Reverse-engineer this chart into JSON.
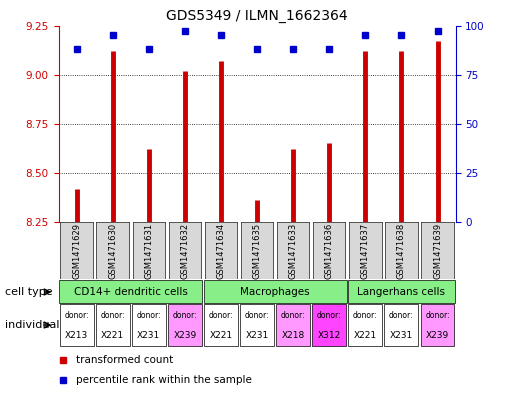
{
  "title": "GDS5349 / ILMN_1662364",
  "samples": [
    "GSM1471629",
    "GSM1471630",
    "GSM1471631",
    "GSM1471632",
    "GSM1471634",
    "GSM1471635",
    "GSM1471633",
    "GSM1471636",
    "GSM1471637",
    "GSM1471638",
    "GSM1471639"
  ],
  "transformed_count": [
    8.42,
    9.12,
    8.62,
    9.02,
    9.07,
    8.36,
    8.62,
    8.65,
    9.12,
    9.12,
    9.17
  ],
  "percentile_rank": [
    88,
    95,
    88,
    97,
    95,
    88,
    88,
    88,
    95,
    95,
    97
  ],
  "ylim_left": [
    8.25,
    9.25
  ],
  "ylim_right": [
    0,
    100
  ],
  "yticks_left": [
    8.25,
    8.5,
    8.75,
    9.0,
    9.25
  ],
  "yticks_right": [
    0,
    25,
    50,
    75,
    100
  ],
  "bar_color": "#cc0000",
  "dot_color": "#0000cc",
  "cell_type_spans": [
    {
      "label": "CD14+ dendritic cells",
      "start": 0,
      "end": 4,
      "color": "#88ee88"
    },
    {
      "label": "Macrophages",
      "start": 4,
      "end": 8,
      "color": "#88ee88"
    },
    {
      "label": "Langerhans cells",
      "start": 8,
      "end": 11,
      "color": "#88ee88"
    }
  ],
  "individuals": [
    "X213",
    "X221",
    "X231",
    "X239",
    "X221",
    "X231",
    "X218",
    "X312",
    "X221",
    "X231",
    "X239"
  ],
  "ind_colors": [
    "#ffffff",
    "#ffffff",
    "#ffffff",
    "#ff99ff",
    "#ffffff",
    "#ffffff",
    "#ff99ff",
    "#ff44ff",
    "#ffffff",
    "#ffffff",
    "#ff99ff"
  ],
  "legend_red": "transformed count",
  "legend_blue": "percentile rank within the sample",
  "grid_color": "#000000",
  "axis_color_left": "#cc0000",
  "axis_color_right": "#0000cc",
  "sample_box_color": "#d8d8d8",
  "cell_type_row_label": "cell type",
  "individual_row_label": "individual"
}
